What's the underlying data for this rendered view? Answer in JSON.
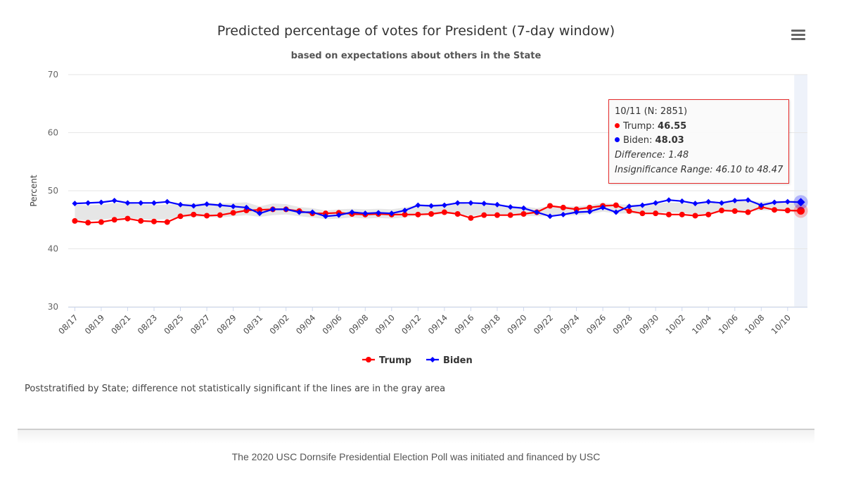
{
  "title": "Predicted percentage of votes for President (7-day window)",
  "subtitle": "based on expectations about others in the State",
  "note": "Poststratified by State; difference not statistically significant if the lines are in the gray area",
  "footer": "The 2020 USC Dornsife Presidential Election Poll was initiated and financed by USC",
  "menu_icon": "hamburger-menu-icon",
  "tooltip": {
    "header": "10/11 (N: 2851)",
    "trump_label": "Trump: ",
    "trump_value": "46.55",
    "biden_label": "Biden: ",
    "biden_value": "48.03",
    "difference": "Difference: 1.48",
    "range": "Insignificance Range: 46.10 to 48.47"
  },
  "colors": {
    "trump": "#ff0000",
    "biden": "#0000ff",
    "band": "#e6e6e6",
    "highlight": "#eef2fa",
    "tooltip_border": "#e62b2b"
  },
  "chart_data": {
    "type": "line",
    "ylabel": "Percent",
    "ylim": [
      30,
      70
    ],
    "yticks": [
      30,
      40,
      50,
      60,
      70
    ],
    "x": [
      "08/17",
      "08/18",
      "08/19",
      "08/20",
      "08/21",
      "08/22",
      "08/23",
      "08/24",
      "08/25",
      "08/26",
      "08/27",
      "08/28",
      "08/29",
      "08/30",
      "08/31",
      "09/01",
      "09/02",
      "09/03",
      "09/04",
      "09/05",
      "09/06",
      "09/07",
      "09/08",
      "09/09",
      "09/10",
      "09/11",
      "09/12",
      "09/13",
      "09/14",
      "09/15",
      "09/16",
      "09/17",
      "09/18",
      "09/19",
      "09/20",
      "09/21",
      "09/22",
      "09/23",
      "09/24",
      "09/25",
      "09/26",
      "09/27",
      "09/28",
      "09/29",
      "09/30",
      "10/01",
      "10/02",
      "10/03",
      "10/04",
      "10/05",
      "10/06",
      "10/07",
      "10/08",
      "10/09",
      "10/10",
      "10/11"
    ],
    "xticks": [
      "08/17",
      "08/19",
      "08/21",
      "08/23",
      "08/25",
      "08/27",
      "08/29",
      "08/31",
      "09/02",
      "09/04",
      "09/06",
      "09/08",
      "09/10",
      "09/12",
      "09/14",
      "09/16",
      "09/18",
      "09/20",
      "09/22",
      "09/24",
      "09/26",
      "09/28",
      "09/30",
      "10/02",
      "10/04",
      "10/06",
      "10/08",
      "10/10"
    ],
    "series": [
      {
        "name": "Trump",
        "color": "#ff0000",
        "marker": "circle",
        "values": [
          44.8,
          44.5,
          44.6,
          45.0,
          45.2,
          44.8,
          44.7,
          44.6,
          45.6,
          45.9,
          45.7,
          45.8,
          46.2,
          46.6,
          46.7,
          46.8,
          46.8,
          46.5,
          46.1,
          46.1,
          46.2,
          46.0,
          45.9,
          46.0,
          45.9,
          45.9,
          45.9,
          46.0,
          46.3,
          46.0,
          45.3,
          45.8,
          45.8,
          45.8,
          46.0,
          46.3,
          47.4,
          47.1,
          46.8,
          47.1,
          47.4,
          47.5,
          46.5,
          46.1,
          46.1,
          45.9,
          45.9,
          45.7,
          45.9,
          46.6,
          46.5,
          46.3,
          47.2,
          46.7,
          46.6,
          46.55
        ]
      },
      {
        "name": "Biden",
        "color": "#0000ff",
        "marker": "diamond",
        "values": [
          47.8,
          47.9,
          48.0,
          48.3,
          47.9,
          47.9,
          47.9,
          48.1,
          47.6,
          47.4,
          47.7,
          47.5,
          47.3,
          47.1,
          46.1,
          46.8,
          46.8,
          46.3,
          46.3,
          45.6,
          45.8,
          46.3,
          46.1,
          46.2,
          46.1,
          46.6,
          47.5,
          47.4,
          47.5,
          47.9,
          47.9,
          47.8,
          47.6,
          47.2,
          47.0,
          46.3,
          45.6,
          45.9,
          46.3,
          46.4,
          47.1,
          46.3,
          47.3,
          47.5,
          47.9,
          48.4,
          48.2,
          47.8,
          48.1,
          47.9,
          48.3,
          48.4,
          47.5,
          48.0,
          48.1,
          48.03
        ]
      }
    ],
    "band_lower": [
      45.0,
      44.9,
      45.0,
      45.3,
      45.3,
      45.1,
      45.0,
      45.1,
      45.4,
      45.5,
      45.5,
      45.4,
      45.6,
      45.8,
      45.5,
      45.8,
      45.9,
      45.6,
      45.4,
      45.1,
      45.2,
      45.4,
      45.2,
      45.3,
      45.2,
      45.4,
      45.8,
      45.8,
      46.0,
      46.0,
      45.6,
      45.9,
      45.8,
      45.7,
      45.7,
      45.6,
      45.6,
      45.7,
      45.8,
      46.0,
      46.4,
      46.1,
      46.1,
      46.0,
      46.2,
      46.3,
      46.2,
      45.9,
      46.1,
      46.4,
      46.5,
      46.5,
      46.6,
      46.6,
      46.5,
      46.1
    ],
    "band_upper": [
      47.6,
      47.5,
      47.6,
      47.9,
      47.8,
      47.6,
      47.6,
      47.6,
      47.8,
      47.8,
      47.9,
      47.8,
      47.9,
      48.0,
      47.3,
      47.8,
      47.7,
      47.2,
      47.0,
      46.6,
      46.8,
      46.9,
      46.8,
      46.9,
      46.8,
      47.1,
      47.6,
      47.6,
      47.8,
      47.9,
      47.6,
      47.7,
      47.6,
      47.3,
      47.3,
      47.0,
      47.4,
      47.3,
      47.3,
      47.5,
      47.9,
      47.7,
      47.6,
      47.6,
      47.8,
      48.0,
      47.9,
      47.6,
      47.9,
      48.1,
      48.3,
      48.3,
      48.1,
      48.2,
      48.2,
      48.47
    ],
    "highlighted_point": "10/11"
  }
}
